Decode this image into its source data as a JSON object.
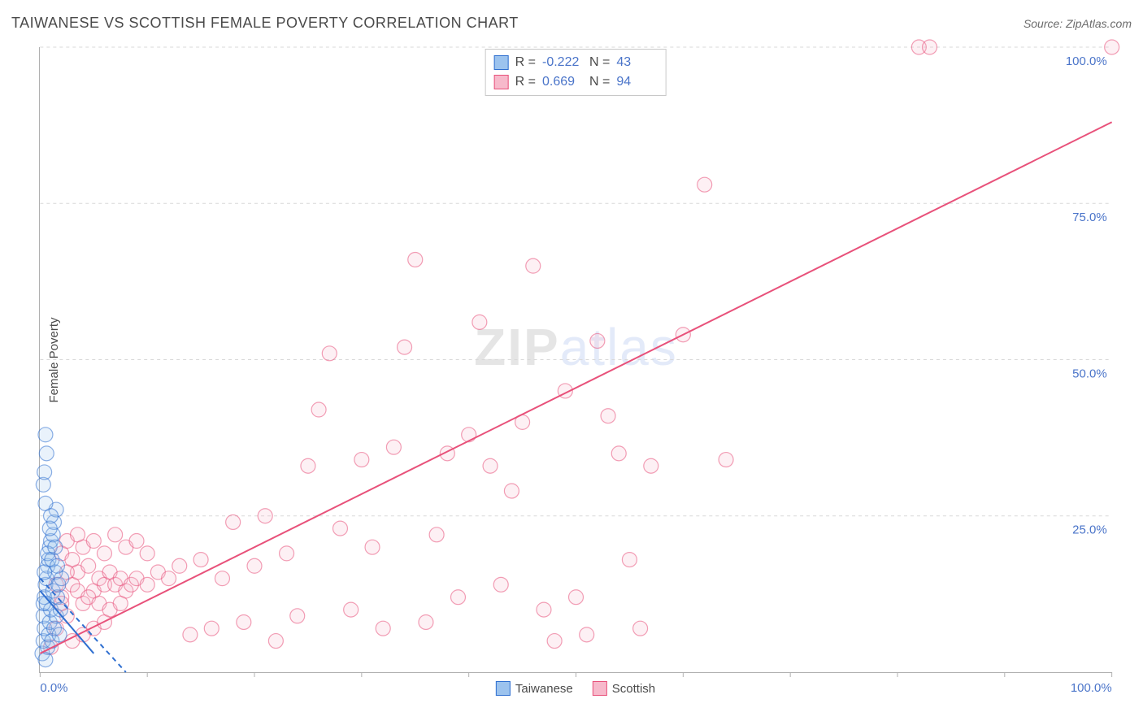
{
  "title": "TAIWANESE VS SCOTTISH FEMALE POVERTY CORRELATION CHART",
  "source_label": "Source: ZipAtlas.com",
  "yaxis_title": "Female Poverty",
  "watermark_a": "ZIP",
  "watermark_b": "atlas",
  "chart": {
    "type": "scatter",
    "xlim": [
      0,
      100
    ],
    "ylim": [
      0,
      100
    ],
    "xtick_positions_pct": [
      0,
      10,
      20,
      30,
      40,
      50,
      60,
      70,
      80,
      90,
      100
    ],
    "xtick_labels": {
      "0": "0.0%",
      "100": "100.0%"
    },
    "ytick_positions_pct": [
      25,
      50,
      75,
      100
    ],
    "ytick_labels": {
      "25": "25.0%",
      "50": "50.0%",
      "75": "75.0%",
      "100": "100.0%"
    },
    "background_color": "#ffffff",
    "grid_color": "#d8d8d8",
    "axis_color": "#b0b0b0",
    "marker_radius": 9,
    "marker_stroke_width": 1.2,
    "marker_fill_opacity": 0.22,
    "trend_line_width": 2,
    "series": {
      "taiwanese": {
        "label": "Taiwanese",
        "color_stroke": "#2f6fd0",
        "color_fill": "#9cc3ee",
        "R": "-0.222",
        "N": "43",
        "trend": {
          "x1": 0,
          "y1": 15,
          "x2": 8,
          "y2": 0,
          "dashed": true
        },
        "trend_solid": {
          "x1": 0,
          "y1": 13,
          "x2": 5,
          "y2": 3
        },
        "points": [
          [
            0.2,
            3
          ],
          [
            0.3,
            5
          ],
          [
            0.4,
            7
          ],
          [
            0.5,
            2
          ],
          [
            0.3,
            9
          ],
          [
            0.6,
            11
          ],
          [
            0.7,
            4
          ],
          [
            0.4,
            12
          ],
          [
            0.8,
            6
          ],
          [
            0.5,
            14
          ],
          [
            0.9,
            8
          ],
          [
            0.6,
            15
          ],
          [
            1.0,
            10
          ],
          [
            0.7,
            17
          ],
          [
            1.1,
            5
          ],
          [
            0.8,
            18
          ],
          [
            1.2,
            13
          ],
          [
            0.9,
            20
          ],
          [
            1.3,
            7
          ],
          [
            1.0,
            21
          ],
          [
            1.4,
            16
          ],
          [
            1.5,
            9
          ],
          [
            1.2,
            22
          ],
          [
            1.6,
            12
          ],
          [
            1.3,
            24
          ],
          [
            1.7,
            14
          ],
          [
            1.8,
            6
          ],
          [
            1.5,
            26
          ],
          [
            0.5,
            27
          ],
          [
            1.9,
            10
          ],
          [
            2.0,
            15
          ],
          [
            0.3,
            30
          ],
          [
            0.4,
            32
          ],
          [
            0.6,
            35
          ],
          [
            0.5,
            38
          ],
          [
            0.3,
            11
          ],
          [
            0.4,
            16
          ],
          [
            0.7,
            19
          ],
          [
            0.9,
            23
          ],
          [
            1.1,
            18
          ],
          [
            1.4,
            20
          ],
          [
            1.6,
            17
          ],
          [
            1.0,
            25
          ]
        ]
      },
      "scottish": {
        "label": "Scottish",
        "color_stroke": "#e8517a",
        "color_fill": "#f7b9cb",
        "R": "0.669",
        "N": "94",
        "trend": {
          "x1": 0,
          "y1": 3,
          "x2": 100,
          "y2": 88,
          "dashed": false
        },
        "points": [
          [
            1,
            4
          ],
          [
            1.5,
            7
          ],
          [
            2,
            12
          ],
          [
            2.5,
            9
          ],
          [
            3,
            14
          ],
          [
            3.5,
            16
          ],
          [
            4,
            11
          ],
          [
            4.5,
            17
          ],
          [
            5,
            13
          ],
          [
            5.5,
            15
          ],
          [
            6,
            14
          ],
          [
            6.5,
            16
          ],
          [
            7,
            14
          ],
          [
            7.5,
            15
          ],
          [
            8,
            13
          ],
          [
            8.5,
            14
          ],
          [
            9,
            15
          ],
          [
            10,
            14
          ],
          [
            11,
            16
          ],
          [
            12,
            15
          ],
          [
            13,
            17
          ],
          [
            14,
            6
          ],
          [
            15,
            18
          ],
          [
            16,
            7
          ],
          [
            17,
            15
          ],
          [
            18,
            24
          ],
          [
            19,
            8
          ],
          [
            20,
            17
          ],
          [
            21,
            25
          ],
          [
            22,
            5
          ],
          [
            23,
            19
          ],
          [
            24,
            9
          ],
          [
            25,
            33
          ],
          [
            26,
            42
          ],
          [
            27,
            51
          ],
          [
            28,
            23
          ],
          [
            29,
            10
          ],
          [
            30,
            34
          ],
          [
            31,
            20
          ],
          [
            32,
            7
          ],
          [
            33,
            36
          ],
          [
            34,
            52
          ],
          [
            35,
            66
          ],
          [
            36,
            8
          ],
          [
            37,
            22
          ],
          [
            38,
            35
          ],
          [
            39,
            12
          ],
          [
            40,
            38
          ],
          [
            41,
            56
          ],
          [
            42,
            33
          ],
          [
            43,
            14
          ],
          [
            44,
            29
          ],
          [
            45,
            40
          ],
          [
            46,
            65
          ],
          [
            47,
            10
          ],
          [
            48,
            5
          ],
          [
            49,
            45
          ],
          [
            50,
            12
          ],
          [
            51,
            6
          ],
          [
            52,
            53
          ],
          [
            53,
            41
          ],
          [
            54,
            35
          ],
          [
            55,
            18
          ],
          [
            56,
            7
          ],
          [
            57,
            33
          ],
          [
            60,
            54
          ],
          [
            62,
            78
          ],
          [
            64,
            34
          ],
          [
            82,
            100
          ],
          [
            83,
            100
          ],
          [
            100,
            100
          ],
          [
            2,
            19
          ],
          [
            2.5,
            21
          ],
          [
            3,
            18
          ],
          [
            3.5,
            22
          ],
          [
            4,
            20
          ],
          [
            5,
            21
          ],
          [
            6,
            19
          ],
          [
            7,
            22
          ],
          [
            8,
            20
          ],
          [
            9,
            21
          ],
          [
            10,
            19
          ],
          [
            3,
            5
          ],
          [
            4,
            6
          ],
          [
            5,
            7
          ],
          [
            6,
            8
          ],
          [
            2,
            11
          ],
          [
            1.5,
            14
          ],
          [
            2.5,
            16
          ],
          [
            3.5,
            13
          ],
          [
            4.5,
            12
          ],
          [
            5.5,
            11
          ],
          [
            6.5,
            10
          ],
          [
            7.5,
            11
          ]
        ]
      }
    }
  },
  "legend_top": {
    "R_label": "R =",
    "N_label": "N ="
  },
  "colors": {
    "title": "#4a4a4a",
    "source": "#6b6b6b",
    "tick_label": "#4a74c9"
  }
}
